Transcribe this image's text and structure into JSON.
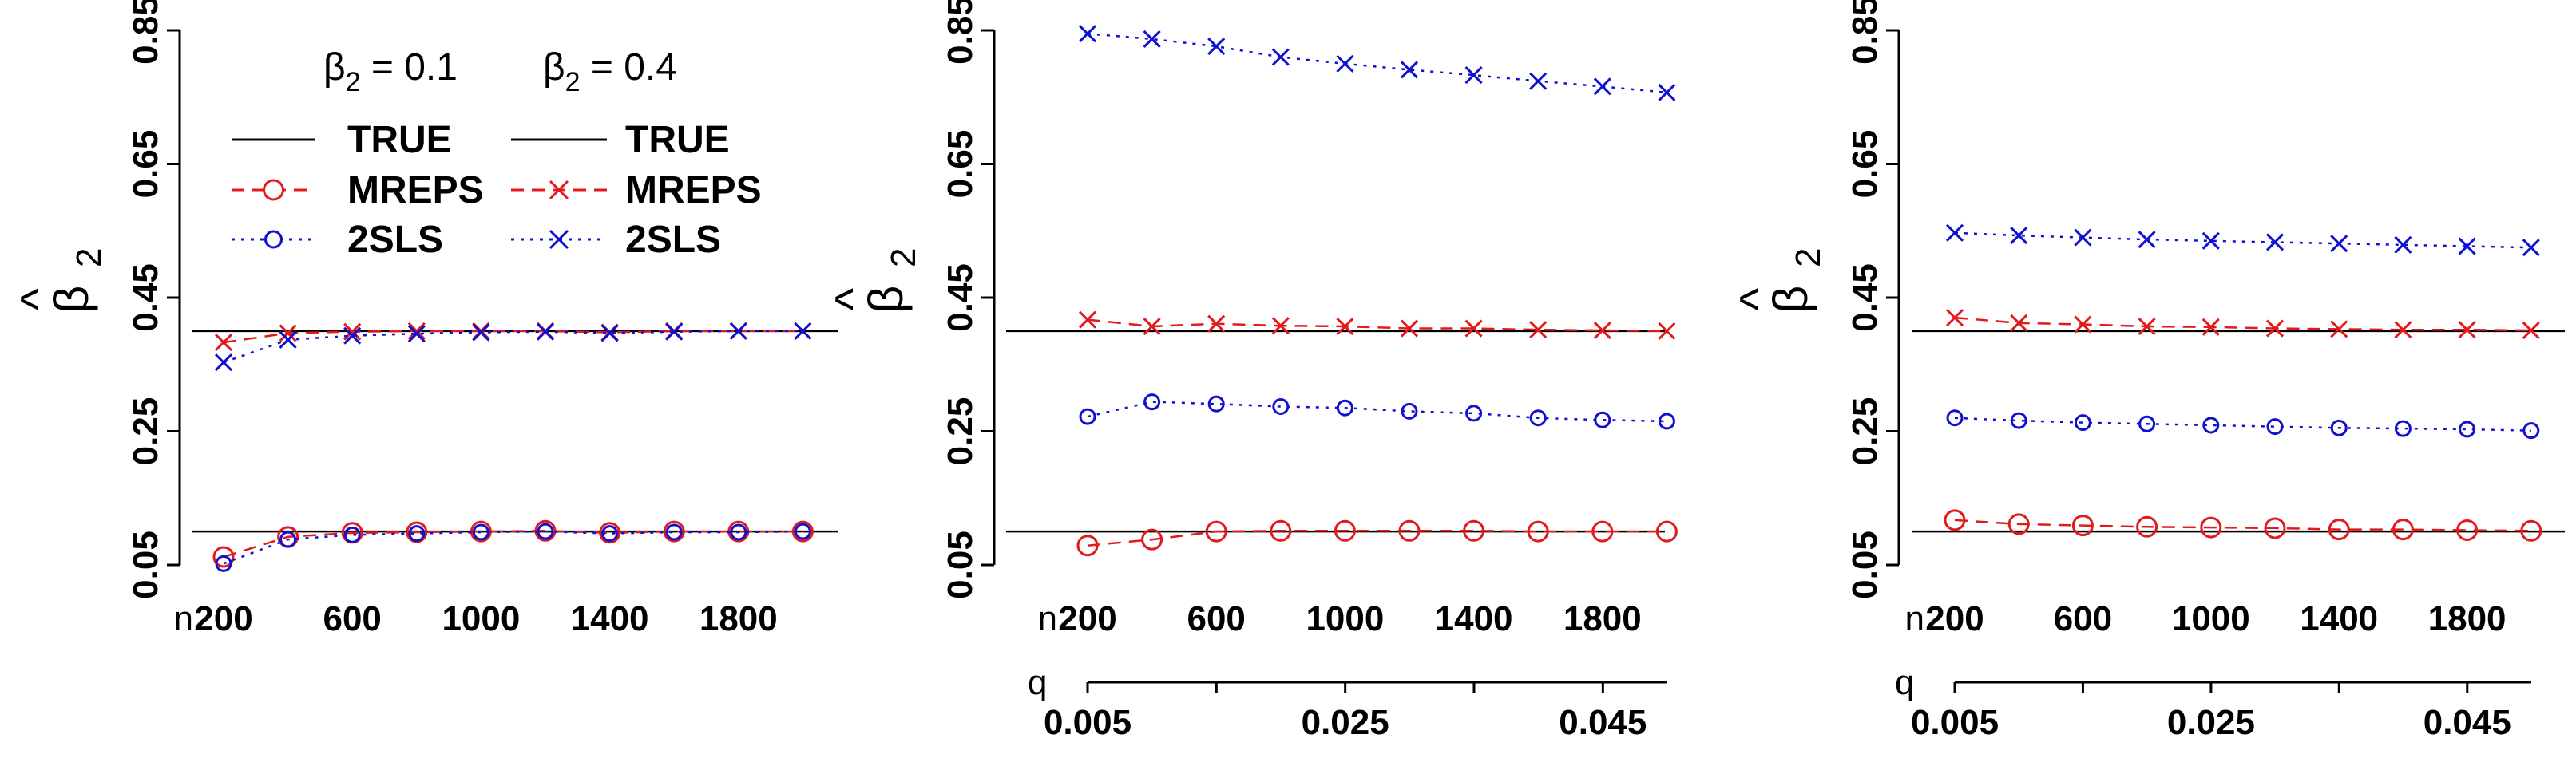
{
  "chart_data": [
    {
      "type": "line",
      "panel": "left",
      "ylabel_symbol": "β",
      "ylabel_hat": "^",
      "ylabel_sub": "2",
      "y_ticks": [
        "0.05",
        "0.25",
        "0.45",
        "0.65",
        "0.85"
      ],
      "ylim": [
        0.05,
        0.85
      ],
      "x_axis_label": "n",
      "x_ticks": [
        "200",
        "600",
        "1000",
        "1400",
        "1800"
      ],
      "x": [
        200,
        400,
        600,
        800,
        1000,
        1200,
        1400,
        1600,
        1800,
        2000
      ],
      "true_lines": [
        0.1,
        0.4
      ],
      "legend": {
        "headers": [
          {
            "sym": "β",
            "sub": "2",
            "rest": " = 0.1"
          },
          {
            "sym": "β",
            "sub": "2",
            "rest": " = 0.4"
          }
        ],
        "rows": [
          {
            "left": "TRUE",
            "right": "TRUE"
          },
          {
            "left": "MREPS",
            "right": "MREPS"
          },
          {
            "left": "2SLS",
            "right": "2SLS"
          }
        ]
      },
      "series": [
        {
          "name": "MREPS β2=0.1",
          "marker": "circle-large",
          "style": "dashed",
          "color": "#e31a1c",
          "values": [
            0.062,
            0.092,
            0.098,
            0.099,
            0.1,
            0.101,
            0.098,
            0.1,
            0.1,
            0.1
          ]
        },
        {
          "name": "2SLS β2=0.1",
          "marker": "circle",
          "style": "dotted",
          "color": "#1010d0",
          "values": [
            0.052,
            0.088,
            0.095,
            0.097,
            0.099,
            0.1,
            0.097,
            0.099,
            0.099,
            0.1
          ]
        },
        {
          "name": "MREPS β2=0.4",
          "marker": "x",
          "style": "dashed",
          "color": "#e31a1c",
          "values": [
            0.383,
            0.397,
            0.399,
            0.4,
            0.4,
            0.4,
            0.398,
            0.4,
            0.4,
            0.4
          ]
        },
        {
          "name": "2SLS β2=0.4",
          "marker": "x",
          "style": "dotted",
          "color": "#1010d0",
          "values": [
            0.353,
            0.387,
            0.393,
            0.396,
            0.398,
            0.399,
            0.397,
            0.399,
            0.4,
            0.4
          ]
        }
      ]
    },
    {
      "type": "line",
      "panel": "middle",
      "ylabel_symbol": "β",
      "ylabel_hat": "^",
      "ylabel_sub": "2",
      "y_ticks": [
        "0.05",
        "0.25",
        "0.45",
        "0.65",
        "0.85"
      ],
      "ylim": [
        0.05,
        0.85
      ],
      "x_axis_label": "n",
      "x_ticks": [
        "200",
        "600",
        "1000",
        "1400",
        "1800"
      ],
      "x": [
        200,
        400,
        600,
        800,
        1000,
        1200,
        1400,
        1600,
        1800,
        2000
      ],
      "q_axis_label": "q",
      "q_ticks": [
        "0.005",
        "0.025",
        "0.045"
      ],
      "true_lines": [
        0.1,
        0.4
      ],
      "series": [
        {
          "name": "MREPS β2=0.1",
          "marker": "circle-large",
          "style": "dashed",
          "color": "#e31a1c",
          "values": [
            0.079,
            0.088,
            0.1,
            0.101,
            0.101,
            0.101,
            0.101,
            0.1,
            0.1,
            0.1
          ]
        },
        {
          "name": "2SLS β2=0.1",
          "marker": "circle",
          "style": "dotted",
          "color": "#1010d0",
          "values": [
            0.272,
            0.294,
            0.291,
            0.287,
            0.285,
            0.28,
            0.277,
            0.27,
            0.267,
            0.265
          ]
        },
        {
          "name": "MREPS β2=0.4",
          "marker": "x",
          "style": "dashed",
          "color": "#e31a1c",
          "values": [
            0.417,
            0.407,
            0.411,
            0.408,
            0.407,
            0.404,
            0.404,
            0.402,
            0.401,
            0.4
          ]
        },
        {
          "name": "2SLS β2=0.4",
          "marker": "x",
          "style": "dotted",
          "color": "#1010d0",
          "values": [
            0.845,
            0.837,
            0.826,
            0.81,
            0.8,
            0.791,
            0.783,
            0.774,
            0.766,
            0.757
          ]
        }
      ]
    },
    {
      "type": "line",
      "panel": "right",
      "ylabel_symbol": "β",
      "ylabel_hat": "^",
      "ylabel_sub": "2",
      "y_ticks": [
        "0.05",
        "0.25",
        "0.45",
        "0.65",
        "0.85"
      ],
      "ylim": [
        0.05,
        0.85
      ],
      "x_axis_label": "n",
      "x_ticks": [
        "200",
        "600",
        "1000",
        "1400",
        "1800"
      ],
      "x": [
        200,
        400,
        600,
        800,
        1000,
        1200,
        1400,
        1600,
        1800,
        2000
      ],
      "q_axis_label": "q",
      "q_ticks": [
        "0.005",
        "0.025",
        "0.045"
      ],
      "true_lines": [
        0.1,
        0.4
      ],
      "series": [
        {
          "name": "MREPS β2=0.1",
          "marker": "circle-large",
          "style": "dashed",
          "color": "#e31a1c",
          "values": [
            0.117,
            0.111,
            0.109,
            0.107,
            0.106,
            0.105,
            0.103,
            0.103,
            0.102,
            0.101
          ]
        },
        {
          "name": "2SLS β2=0.1",
          "marker": "circle",
          "style": "dotted",
          "color": "#1010d0",
          "values": [
            0.27,
            0.266,
            0.263,
            0.261,
            0.259,
            0.257,
            0.255,
            0.254,
            0.253,
            0.251
          ]
        },
        {
          "name": "MREPS β2=0.4",
          "marker": "x",
          "style": "dashed",
          "color": "#e31a1c",
          "values": [
            0.42,
            0.412,
            0.41,
            0.407,
            0.406,
            0.404,
            0.403,
            0.402,
            0.402,
            0.401
          ]
        },
        {
          "name": "2SLS β2=0.4",
          "marker": "x",
          "style": "dotted",
          "color": "#1010d0",
          "values": [
            0.547,
            0.543,
            0.54,
            0.537,
            0.535,
            0.533,
            0.531,
            0.529,
            0.527,
            0.525
          ]
        }
      ]
    }
  ]
}
